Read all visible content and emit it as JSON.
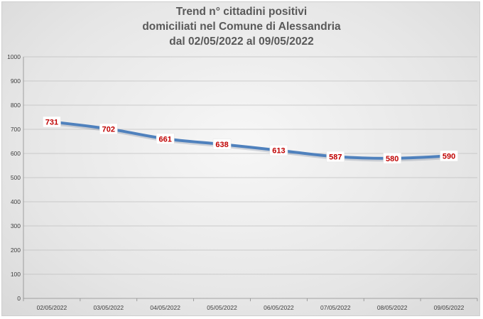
{
  "chart_data": {
    "type": "line",
    "title": "Trend n° cittadini positivi",
    "subtitle_lines": [
      "domiciliati nel Comune di Alessandria",
      "dal 02/05/2022 al 09/05/2022"
    ],
    "categories": [
      "02/05/2022",
      "03/05/2022",
      "04/05/2022",
      "05/05/2022",
      "06/05/2022",
      "07/05/2022",
      "08/05/2022",
      "09/05/2022"
    ],
    "series": [
      {
        "values": [
          731,
          702,
          661,
          638,
          613,
          587,
          580,
          590
        ],
        "color": "#4f81bd"
      }
    ],
    "ylim": [
      0,
      1000
    ],
    "yticks": [
      0,
      100,
      200,
      300,
      400,
      500,
      600,
      700,
      800,
      900,
      1000
    ],
    "grid": true,
    "data_label_color": "#c00000"
  }
}
